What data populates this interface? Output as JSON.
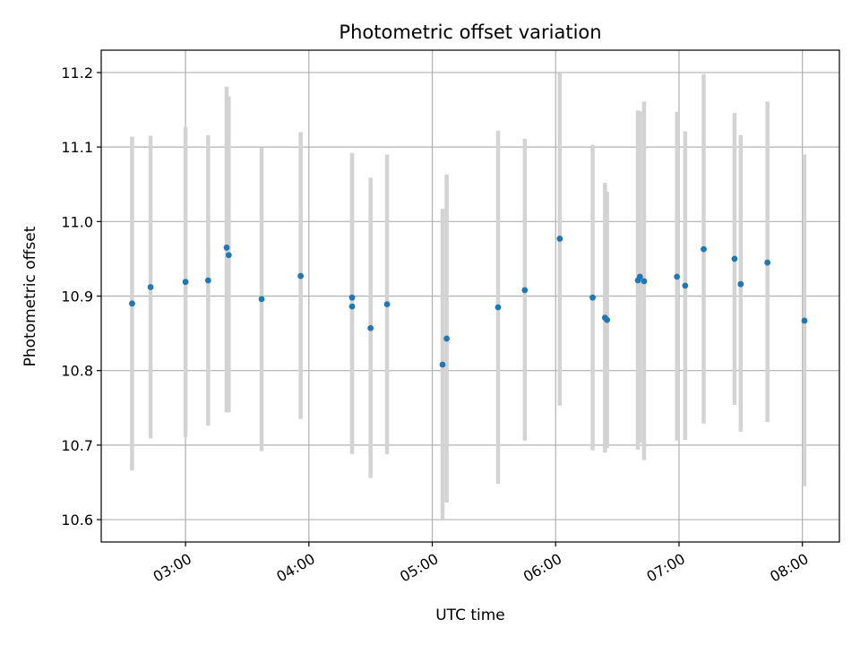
{
  "chart_data": {
    "type": "scatter",
    "title": "Photometric offset variation",
    "xlabel": "UTC time",
    "ylabel": "Photometric offset",
    "x_ticks": [
      "03:00",
      "04:00",
      "05:00",
      "06:00",
      "07:00",
      "08:00"
    ],
    "y_ticks": [
      "10.6",
      "10.7",
      "10.8",
      "10.9",
      "11.0",
      "11.1",
      "11.2"
    ],
    "xlim": [
      "02:19",
      "08:18"
    ],
    "ylim": [
      10.57,
      11.23
    ],
    "grid": true,
    "colors": {
      "points": "#1f77b4",
      "error_bars": "#d3d3d3",
      "grid": "#b0b0b0"
    },
    "points": [
      {
        "x": "02:34",
        "y": 10.89,
        "lo": 10.666,
        "hi": 11.114
      },
      {
        "x": "02:43",
        "y": 10.912,
        "lo": 10.709,
        "hi": 11.115
      },
      {
        "x": "03:00",
        "y": 10.919,
        "lo": 10.711,
        "hi": 11.127
      },
      {
        "x": "03:11",
        "y": 10.921,
        "lo": 10.726,
        "hi": 11.116
      },
      {
        "x": "03:20",
        "y": 10.965,
        "lo": 10.744,
        "hi": 11.181
      },
      {
        "x": "03:21",
        "y": 10.955,
        "lo": 10.744,
        "hi": 11.168
      },
      {
        "x": "03:37",
        "y": 10.896,
        "lo": 10.692,
        "hi": 11.099
      },
      {
        "x": "03:56",
        "y": 10.927,
        "lo": 10.735,
        "hi": 11.12
      },
      {
        "x": "04:21",
        "y": 10.898,
        "lo": 10.704,
        "hi": 11.092
      },
      {
        "x": "04:21",
        "y": 10.886,
        "lo": 10.688,
        "hi": 11.086
      },
      {
        "x": "04:30",
        "y": 10.857,
        "lo": 10.656,
        "hi": 11.059
      },
      {
        "x": "04:38",
        "y": 10.889,
        "lo": 10.688,
        "hi": 11.09
      },
      {
        "x": "05:05",
        "y": 10.808,
        "lo": 10.6,
        "hi": 11.017
      },
      {
        "x": "05:07",
        "y": 10.843,
        "lo": 10.623,
        "hi": 11.063
      },
      {
        "x": "05:32",
        "y": 10.885,
        "lo": 10.648,
        "hi": 11.122
      },
      {
        "x": "05:45",
        "y": 10.908,
        "lo": 10.706,
        "hi": 11.111
      },
      {
        "x": "06:02",
        "y": 10.977,
        "lo": 10.753,
        "hi": 11.199
      },
      {
        "x": "06:18",
        "y": 10.898,
        "lo": 10.693,
        "hi": 11.103
      },
      {
        "x": "06:24",
        "y": 10.871,
        "lo": 10.69,
        "hi": 11.052
      },
      {
        "x": "06:25",
        "y": 10.868,
        "lo": 10.696,
        "hi": 11.04
      },
      {
        "x": "06:40",
        "y": 10.921,
        "lo": 10.694,
        "hi": 11.149
      },
      {
        "x": "06:41",
        "y": 10.926,
        "lo": 10.703,
        "hi": 11.148
      },
      {
        "x": "06:43",
        "y": 10.92,
        "lo": 10.68,
        "hi": 11.161
      },
      {
        "x": "06:59",
        "y": 10.926,
        "lo": 10.706,
        "hi": 11.147
      },
      {
        "x": "07:03",
        "y": 10.914,
        "lo": 10.707,
        "hi": 11.121
      },
      {
        "x": "07:12",
        "y": 10.963,
        "lo": 10.729,
        "hi": 11.198
      },
      {
        "x": "07:27",
        "y": 10.95,
        "lo": 10.754,
        "hi": 11.146
      },
      {
        "x": "07:30",
        "y": 10.916,
        "lo": 10.718,
        "hi": 11.116
      },
      {
        "x": "07:43",
        "y": 10.945,
        "lo": 10.731,
        "hi": 11.161
      },
      {
        "x": "08:01",
        "y": 10.867,
        "lo": 10.645,
        "hi": 11.09
      }
    ]
  }
}
